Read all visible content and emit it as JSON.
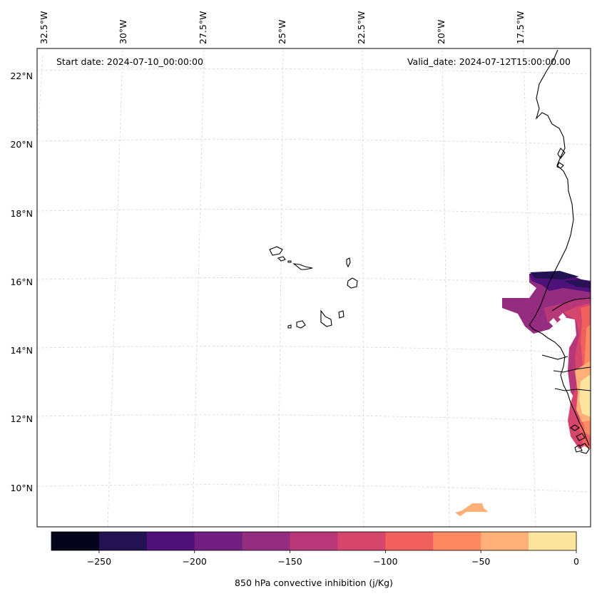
{
  "map": {
    "start_date": "Start date: 2024-07-10_00:00:00",
    "valid_date": "Valid_date: 2024-07-12T15:00:00.00",
    "lon_labels": [
      "32.5°W",
      "30°W",
      "27.5°W",
      "25°W",
      "22.5°W",
      "20°W",
      "17.5°W"
    ],
    "lat_labels": [
      "22°N",
      "20°N",
      "18°N",
      "16°N",
      "14°N",
      "12°N",
      "10°N"
    ],
    "features": [
      "Cabo Verde islands",
      "West African coastline"
    ]
  },
  "colorbar": {
    "label": "850 hPa convective inhibition (j/Kg)",
    "tick_labels": [
      "−250",
      "−200",
      "−150",
      "−100",
      "−50",
      "0"
    ],
    "range": [
      -275,
      0
    ],
    "levels": [
      -275,
      -250,
      -225,
      -200,
      -175,
      -150,
      -125,
      -100,
      -75,
      -50,
      -25,
      0
    ],
    "colors": [
      "#04041a",
      "#221251",
      "#4f127b",
      "#721f81",
      "#942c80",
      "#b73779",
      "#d6456c",
      "#f1605d",
      "#fc8961",
      "#feb078",
      "#fde5a0"
    ]
  }
}
